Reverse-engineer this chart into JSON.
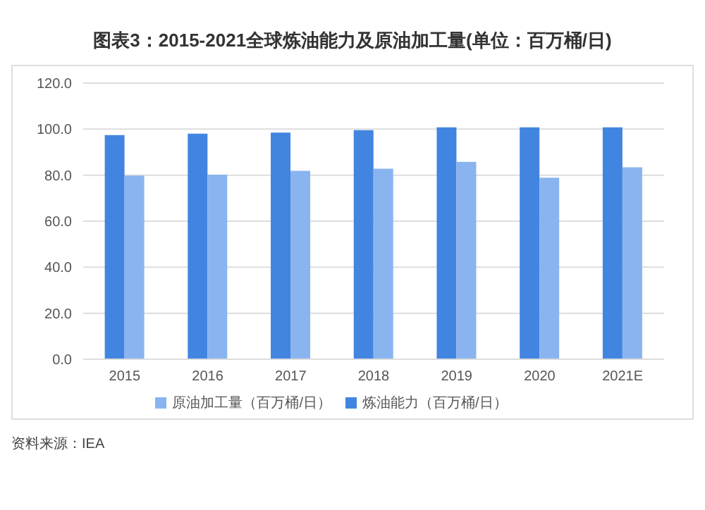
{
  "chart_data": {
    "type": "bar",
    "title": "图表3：2015-2021全球炼油能力及原油加工量(单位：百万桶/日)",
    "categories": [
      "2015",
      "2016",
      "2017",
      "2018",
      "2019",
      "2020",
      "2021E"
    ],
    "series": [
      {
        "name": "炼油能力（百万桶/日）",
        "color": "#4285e0",
        "values": [
          97.4,
          98.0,
          98.5,
          99.6,
          100.8,
          100.8,
          100.8
        ]
      },
      {
        "name": "原油加工量（百万桶/日）",
        "color": "#8ab4ef",
        "values": [
          79.8,
          80.2,
          81.9,
          82.8,
          85.8,
          78.9,
          83.4
        ]
      }
    ],
    "ylim": [
      0,
      120
    ],
    "yticks": [
      {
        "value": 0,
        "label": "0.0"
      },
      {
        "value": 20,
        "label": "20.0"
      },
      {
        "value": 40,
        "label": "40.0"
      },
      {
        "value": 60,
        "label": "60.0"
      },
      {
        "value": 80,
        "label": "80.0"
      },
      {
        "value": 100,
        "label": "100.0"
      },
      {
        "value": 120,
        "label": "120.0"
      }
    ],
    "grid": "y",
    "legend": "bottom",
    "annotations": [
      "资料来源：IEA"
    ]
  }
}
